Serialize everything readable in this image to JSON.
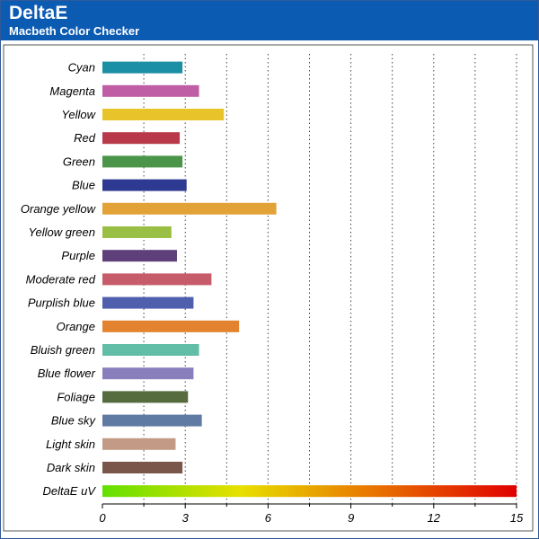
{
  "header": {
    "title": "DeltaE",
    "subtitle": "Macbeth Color Checker"
  },
  "chart_data": {
    "type": "bar",
    "orientation": "horizontal",
    "title": "DeltaE",
    "subtitle": "Macbeth Color Checker",
    "xlabel": "",
    "ylabel": "",
    "xlim": [
      0,
      15
    ],
    "xticks": [
      0,
      3,
      6,
      9,
      12,
      15
    ],
    "grid": "vertical dotted lines at every 1.5",
    "categories": [
      "Cyan",
      "Magenta",
      "Yellow",
      "Red",
      "Green",
      "Blue",
      "Orange yellow",
      "Yellow green",
      "Purple",
      "Moderate red",
      "Purplish blue",
      "Orange",
      "Bluish green",
      "Blue flower",
      "Foliage",
      "Blue sky",
      "Light skin",
      "Dark skin",
      "DeltaE uV"
    ],
    "values": [
      2.9,
      3.5,
      4.4,
      2.8,
      2.9,
      3.05,
      6.3,
      2.5,
      2.7,
      3.95,
      3.3,
      4.95,
      3.5,
      3.3,
      3.1,
      3.6,
      2.65,
      2.9,
      15
    ],
    "colors": [
      "#1b8fa5",
      "#c05ea5",
      "#e8c42a",
      "#b83a4a",
      "#4a954a",
      "#2e3a92",
      "#e3a237",
      "#9abf45",
      "#5f3f7a",
      "#c65c6a",
      "#4f5fad",
      "#e3832f",
      "#62bda6",
      "#8a7fbd",
      "#566b3e",
      "#5f7ba3",
      "#c39a86",
      "#7a564a",
      "gradient"
    ],
    "gradient_colors": [
      "#62e000",
      "#e8e000",
      "#e87000",
      "#e00000"
    ]
  }
}
